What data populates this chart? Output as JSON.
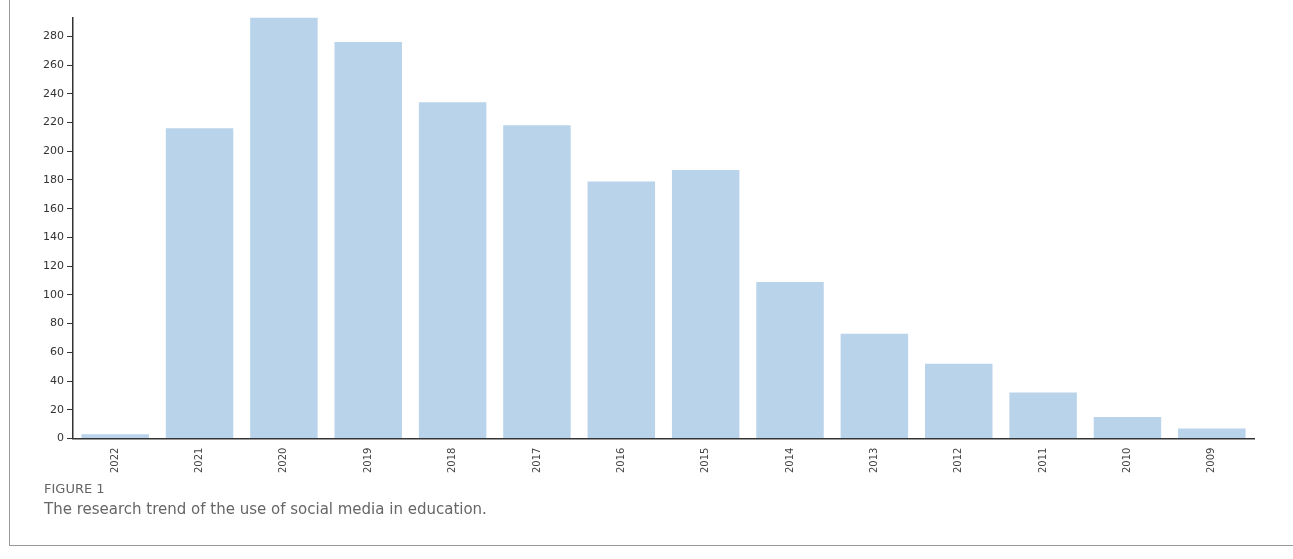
{
  "chart_data": {
    "type": "bar",
    "title": "FIGURE 1",
    "subtitle": "The research trend of the use of social media in education.",
    "categories": [
      "2022",
      "2021",
      "2020",
      "2019",
      "2018",
      "2017",
      "2016",
      "2015",
      "2014",
      "2013",
      "2012",
      "2011",
      "2010",
      "2009"
    ],
    "values": [
      3,
      216,
      293,
      276,
      234,
      218,
      179,
      187,
      109,
      73,
      52,
      32,
      15,
      7
    ],
    "color": "#b9d3eb",
    "ylim": [
      0,
      293
    ],
    "yticks": [
      0,
      20,
      40,
      60,
      80,
      100,
      120,
      140,
      160,
      180,
      200,
      220,
      240,
      260,
      280
    ],
    "grid": false
  }
}
